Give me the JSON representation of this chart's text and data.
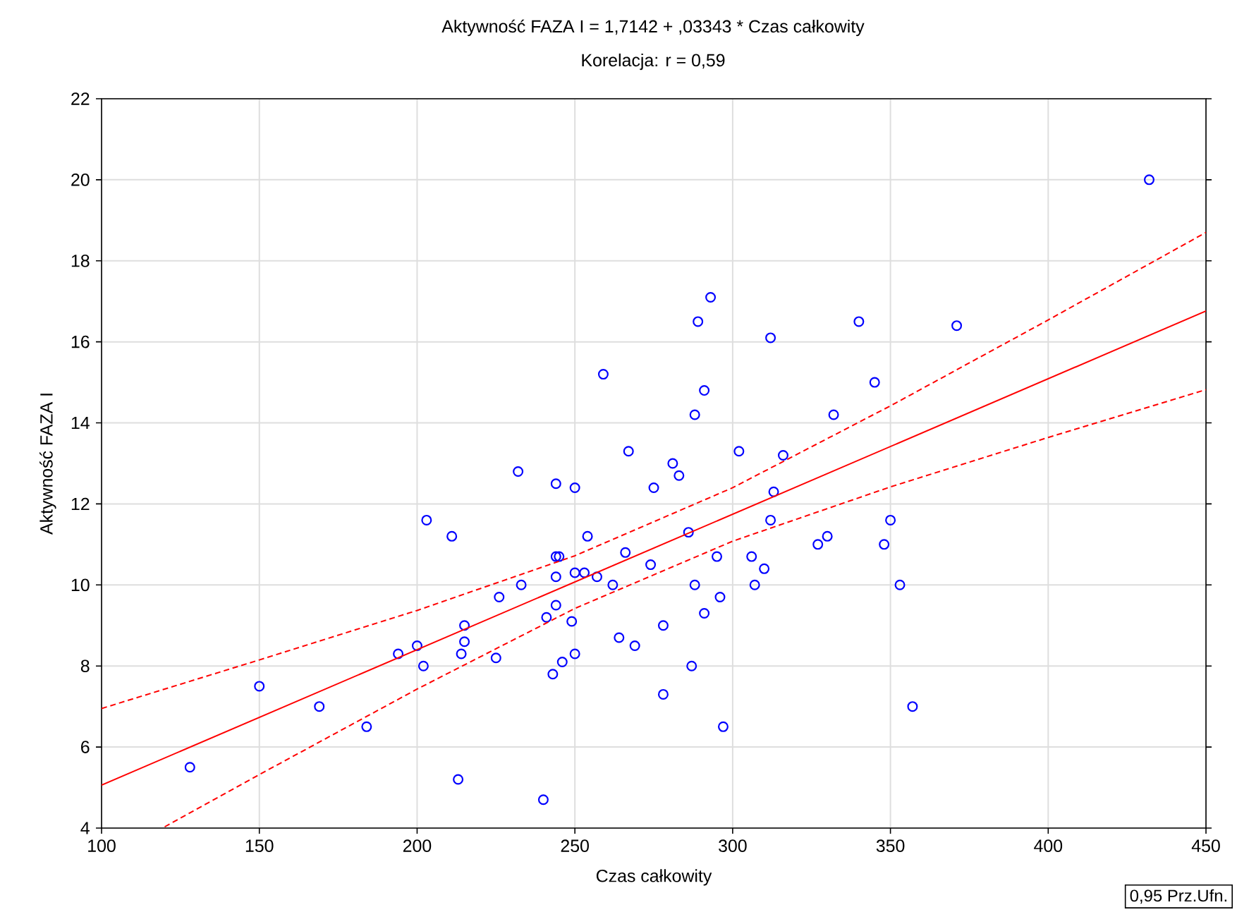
{
  "chart_data": {
    "type": "scatter",
    "title": "Aktywność FAZA I = 1,7142 + ,03343 * Czas całkowity",
    "subtitle": "Korelacja: r =  0,59",
    "xlabel": "Czas całkowity",
    "ylabel": "Aktywność FAZA I",
    "xlim": [
      100,
      450
    ],
    "xticks": [
      100,
      150,
      200,
      250,
      300,
      350,
      400,
      450
    ],
    "ylim": [
      4,
      22
    ],
    "yticks": [
      4,
      6,
      8,
      10,
      12,
      14,
      16,
      18,
      20,
      22
    ],
    "grid": true,
    "marker": "circle",
    "annotations": [
      "0,95 Prz.Ufn."
    ],
    "series": [
      {
        "color": "#0000ff",
        "x": [
          128,
          150,
          169,
          184,
          194,
          200,
          202,
          203,
          211,
          213,
          214,
          215,
          215,
          225,
          226,
          232,
          233,
          240,
          241,
          243,
          244,
          244,
          244,
          244,
          245,
          246,
          249,
          250,
          250,
          250,
          253,
          254,
          257,
          259,
          262,
          264,
          266,
          267,
          269,
          274,
          275,
          278,
          278,
          281,
          283,
          286,
          287,
          288,
          288,
          289,
          291,
          291,
          293,
          295,
          296,
          297,
          302,
          306,
          307,
          310,
          312,
          312,
          313,
          316,
          327,
          330,
          332,
          340,
          345,
          348,
          350,
          353,
          357,
          371,
          432
        ],
        "values": [
          5.5,
          7.5,
          7.0,
          6.5,
          8.3,
          8.5,
          8.0,
          11.6,
          11.2,
          5.2,
          8.3,
          8.6,
          9.0,
          8.2,
          9.7,
          12.8,
          10.0,
          4.7,
          9.2,
          7.8,
          10.2,
          9.5,
          10.7,
          12.5,
          10.7,
          8.1,
          9.1,
          12.4,
          8.3,
          10.3,
          10.3,
          11.2,
          10.2,
          15.2,
          10.0,
          8.7,
          10.8,
          13.3,
          8.5,
          10.5,
          12.4,
          7.3,
          9.0,
          13.0,
          12.7,
          11.3,
          8.0,
          10.0,
          14.2,
          16.5,
          14.8,
          9.3,
          17.1,
          10.7,
          9.7,
          6.5,
          13.3,
          10.7,
          10.0,
          10.4,
          16.1,
          11.6,
          12.3,
          13.2,
          11.0,
          11.2,
          14.2,
          16.5,
          15.0,
          11.0,
          11.6,
          10.0,
          7.0,
          16.4,
          20.0
        ]
      },
      {
        "type": "line",
        "color": "#ff0000",
        "marker": "none",
        "line_style": "solid",
        "x": [
          100,
          450
        ],
        "values": [
          5.06,
          16.76
        ]
      },
      {
        "type": "line",
        "color": "#ff0000",
        "marker": "none",
        "line_style": "dashed",
        "x": [
          100,
          150,
          200,
          250,
          300,
          350,
          400,
          450
        ],
        "values": [
          6.95,
          8.15,
          9.37,
          10.72,
          12.4,
          14.42,
          16.54,
          18.7
        ]
      },
      {
        "type": "line",
        "color": "#ff0000",
        "marker": "none",
        "line_style": "dashed",
        "x": [
          120,
          150,
          200,
          250,
          300,
          350,
          400,
          450
        ],
        "values": [
          4.03,
          5.32,
          7.43,
          9.42,
          11.08,
          12.42,
          13.64,
          14.82
        ]
      }
    ]
  }
}
